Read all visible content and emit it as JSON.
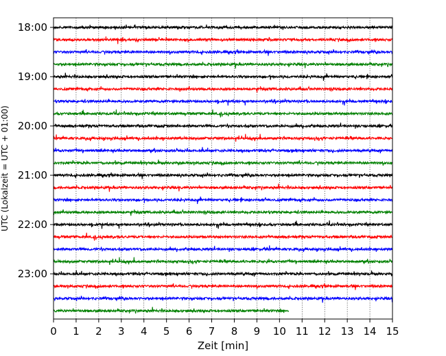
{
  "chart_data": {
    "type": "line",
    "title": "",
    "xlabel": "Zeit  [min]",
    "ylabel": "UTC (Lokalzeit = UTC + 01:00)",
    "xlim": [
      0,
      15
    ],
    "x_ticks": [
      0,
      1,
      2,
      3,
      4,
      5,
      6,
      7,
      8,
      9,
      10,
      11,
      12,
      13,
      14,
      15
    ],
    "x_tick_labels": [
      "0",
      "1",
      "2",
      "3",
      "4",
      "5",
      "6",
      "7",
      "8",
      "9",
      "10",
      "11",
      "12",
      "13",
      "14",
      "15"
    ],
    "y_ticks": [
      "18:00",
      "19:00",
      "20:00",
      "21:00",
      "22:00",
      "23:00"
    ],
    "grid": "vertical dotted lines at each minute",
    "trace_interval_min": 15,
    "traces_start": "18:00",
    "colors": [
      "#000000",
      "#ff0000",
      "#0000ff",
      "#008000"
    ],
    "traces": [
      {
        "start": "18:00",
        "color": "#000000",
        "end_min": 15
      },
      {
        "start": "18:15",
        "color": "#ff0000",
        "end_min": 15
      },
      {
        "start": "18:30",
        "color": "#0000ff",
        "end_min": 15
      },
      {
        "start": "18:45",
        "color": "#008000",
        "end_min": 15
      },
      {
        "start": "19:00",
        "color": "#000000",
        "end_min": 15
      },
      {
        "start": "19:15",
        "color": "#ff0000",
        "end_min": 15
      },
      {
        "start": "19:30",
        "color": "#0000ff",
        "end_min": 15
      },
      {
        "start": "19:45",
        "color": "#008000",
        "end_min": 15
      },
      {
        "start": "20:00",
        "color": "#000000",
        "end_min": 15
      },
      {
        "start": "20:15",
        "color": "#ff0000",
        "end_min": 15
      },
      {
        "start": "20:30",
        "color": "#0000ff",
        "end_min": 15
      },
      {
        "start": "20:45",
        "color": "#008000",
        "end_min": 15
      },
      {
        "start": "21:00",
        "color": "#000000",
        "end_min": 15
      },
      {
        "start": "21:15",
        "color": "#ff0000",
        "end_min": 15
      },
      {
        "start": "21:30",
        "color": "#0000ff",
        "end_min": 15
      },
      {
        "start": "21:45",
        "color": "#008000",
        "end_min": 15
      },
      {
        "start": "22:00",
        "color": "#000000",
        "end_min": 15
      },
      {
        "start": "22:15",
        "color": "#ff0000",
        "end_min": 15
      },
      {
        "start": "22:30",
        "color": "#0000ff",
        "end_min": 15
      },
      {
        "start": "22:45",
        "color": "#008000",
        "end_min": 15
      },
      {
        "start": "23:00",
        "color": "#000000",
        "end_min": 15
      },
      {
        "start": "23:15",
        "color": "#ff0000",
        "end_min": 15
      },
      {
        "start": "23:30",
        "color": "#0000ff",
        "end_min": 15
      },
      {
        "start": "23:45",
        "color": "#008000",
        "end_min": 10.4
      }
    ]
  }
}
